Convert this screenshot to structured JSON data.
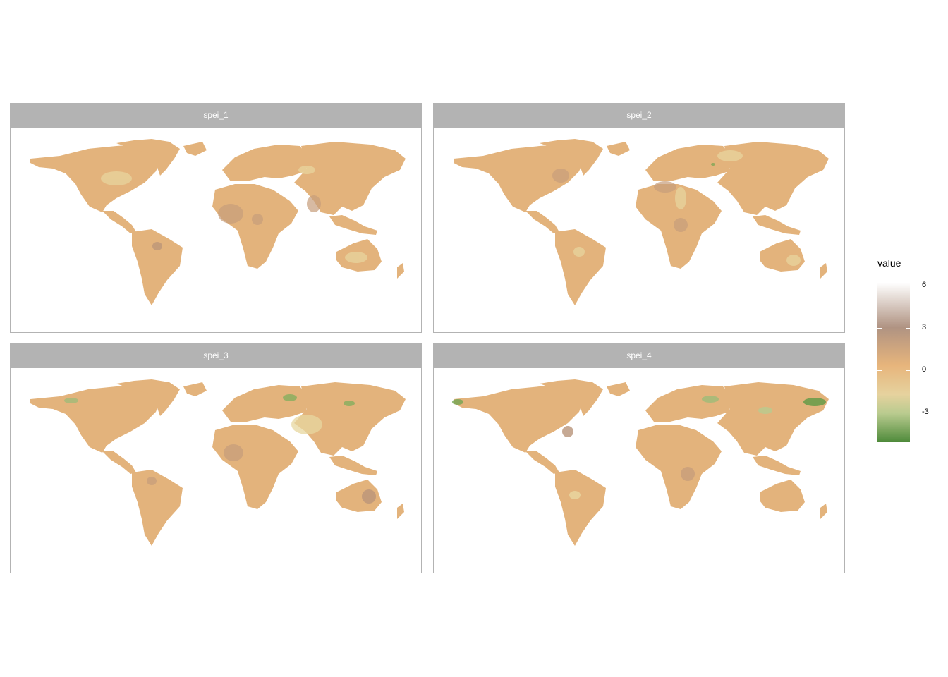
{
  "panels": [
    {
      "label": "spei_1"
    },
    {
      "label": "spei_2"
    },
    {
      "label": "spei_3"
    },
    {
      "label": "spei_4"
    }
  ],
  "legend": {
    "title": "value",
    "ticks": [
      "6",
      "3",
      "0",
      "-3"
    ]
  },
  "colors": {
    "strip_bg": "#b3b3b3",
    "land_base": "#e3b37c",
    "dry_spot": "#c79e7b",
    "wet_spot": "#e8d7a0",
    "very_wet": "#73a552"
  }
}
